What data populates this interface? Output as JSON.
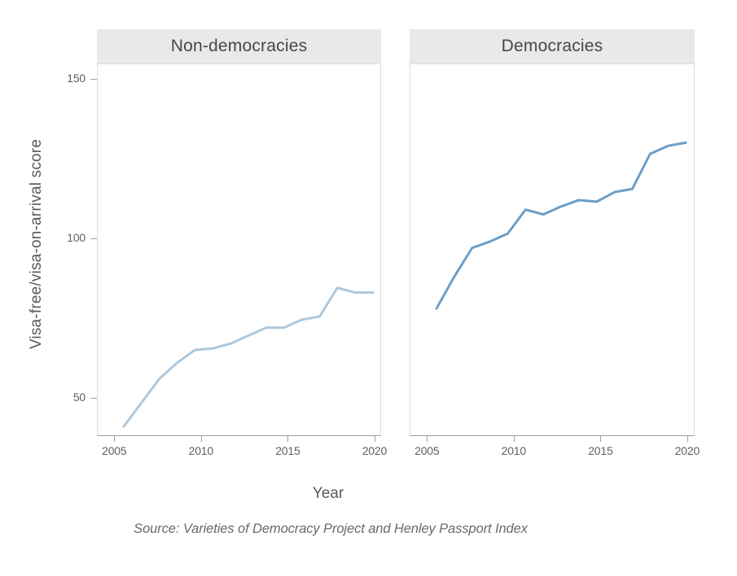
{
  "figure": {
    "y_axis_label": "Visa-free/visa-on-arrival score",
    "x_axis_label": "Year",
    "caption": "Source: Varieties of Democracy Project and Henley Passport Index",
    "y_tick_labels": [
      "150",
      "100",
      "50"
    ],
    "x_tick_labels": [
      "2005",
      "2010",
      "2015",
      "2020"
    ],
    "colors": {
      "non_democracies_line": "#aec8dc",
      "democracies_line": "#6d9ec6",
      "strip_background": "#e9e9e9",
      "panel_border": "#dcdcdc",
      "axis_line": "#9e9e9e",
      "text_gray": "#5f5f5f"
    }
  },
  "chart_data": [
    {
      "type": "line",
      "title": "Non-democracies",
      "x": [
        2006,
        2007,
        2008,
        2009,
        2010,
        2011,
        2012,
        2013,
        2014,
        2015,
        2016,
        2017,
        2018,
        2019,
        2020
      ],
      "values": [
        41,
        48.5,
        56,
        61,
        65,
        65.5,
        67,
        69.5,
        72,
        72,
        74.5,
        75.5,
        84.5,
        83,
        83
      ],
      "line_color": "#aec8dc",
      "xlabel": "Year",
      "ylabel": "Visa-free/visa-on-arrival score",
      "xlim": [
        2004.05,
        2020.4
      ],
      "ylim": [
        37.5,
        154.5
      ],
      "x_ticks": [
        2005,
        2010,
        2015,
        2020
      ],
      "y_ticks": [
        150,
        100,
        50
      ],
      "grid": false,
      "legend": false
    },
    {
      "type": "line",
      "title": "Democracies",
      "x": [
        2006,
        2007,
        2008,
        2009,
        2010,
        2011,
        2012,
        2013,
        2014,
        2015,
        2016,
        2017,
        2018,
        2019,
        2020
      ],
      "values": [
        78,
        88,
        97,
        99,
        101.5,
        109,
        107.5,
        110,
        112,
        111.5,
        114.5,
        115.5,
        126.5,
        129,
        130
      ],
      "line_color": "#6d9ec6",
      "xlabel": "Year",
      "ylabel": "Visa-free/visa-on-arrival score",
      "xlim": [
        2004.05,
        2020.4
      ],
      "ylim": [
        37.5,
        154.5
      ],
      "x_ticks": [
        2005,
        2010,
        2015,
        2020
      ],
      "y_ticks": [
        150,
        100,
        50
      ],
      "grid": false,
      "legend": false
    }
  ]
}
